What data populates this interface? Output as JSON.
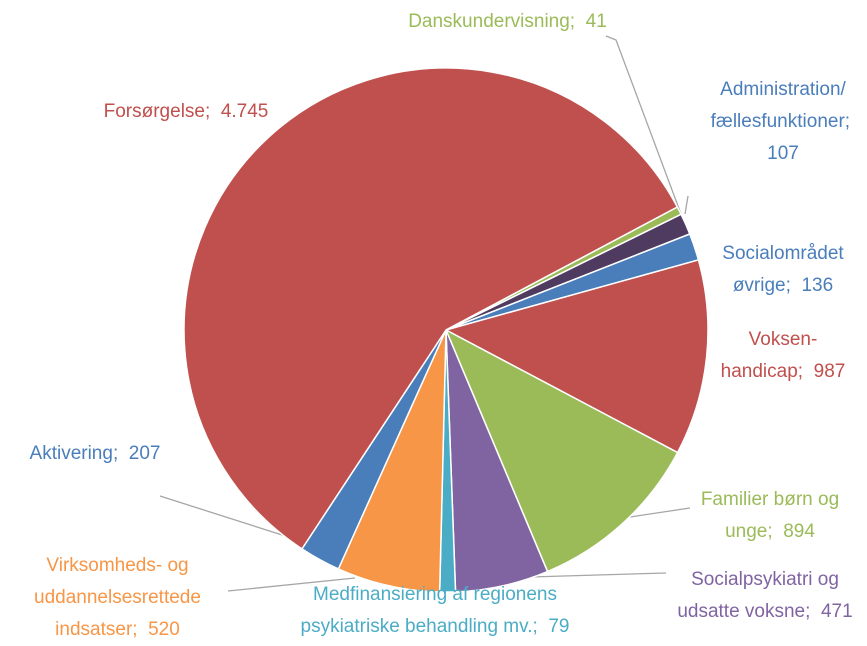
{
  "chart_data": {
    "type": "pie",
    "categories": [
      "Danskundervisning;",
      "Administration/ fællesfunktioner;",
      "Socialområdet øvrige;",
      "Voksen-handicap;",
      "Familier børn og unge;",
      "Socialpsykiatri og udsatte voksne;",
      "Medfinansiering af regionens psykiatriske behandling mv.;",
      "Virksomheds- og uddannelsesrettede indsatser;",
      "Aktivering;",
      "Forsørgelse;"
    ],
    "values": [
      41,
      107,
      136,
      987,
      894,
      471,
      79,
      520,
      207,
      4745
    ],
    "value_labels": [
      "41",
      "107",
      "136",
      "987",
      "894",
      "471",
      "79",
      "520",
      "207",
      "4.745"
    ],
    "colors": [
      "#9bbb59",
      "#4f3a60",
      "#4a7ebb",
      "#c0504d",
      "#9bbb59",
      "#8064a2",
      "#4bacc6",
      "#f79646",
      "#4a7ebb",
      "#c0504d"
    ],
    "label_colors": [
      "#9bbb59",
      "#4a7ebb",
      "#4a7ebb",
      "#c0504d",
      "#9bbb59",
      "#8064a2",
      "#4bacc6",
      "#f79646",
      "#4a7ebb",
      "#c0504d"
    ]
  }
}
